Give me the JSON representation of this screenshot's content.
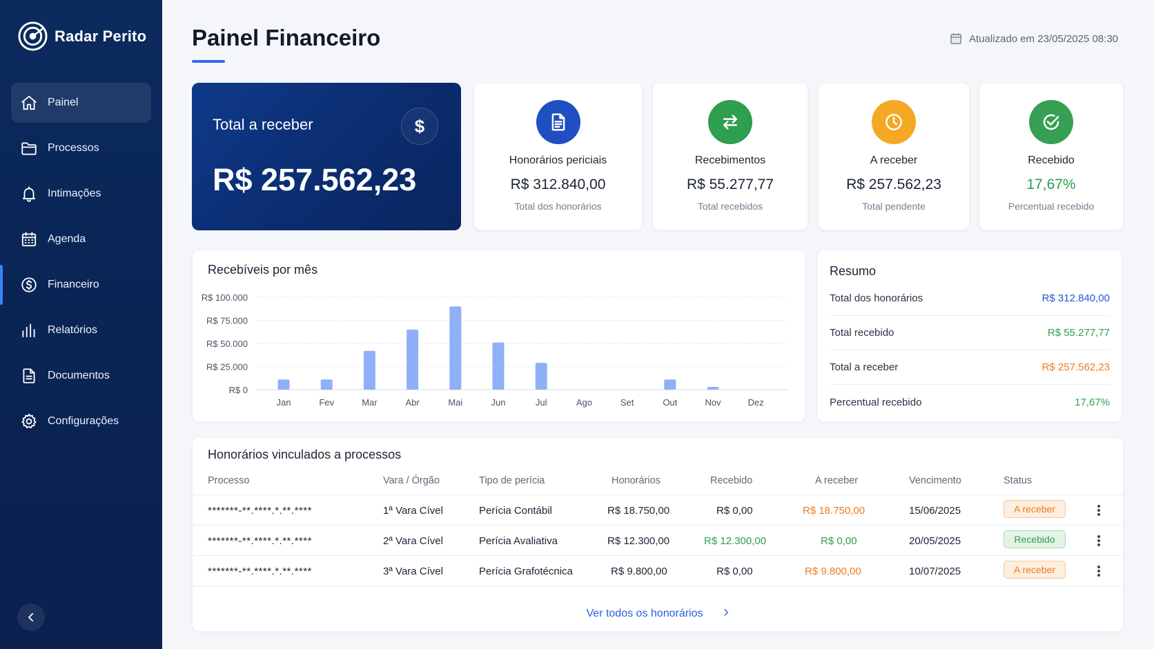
{
  "app": {
    "brand": "Radar Perito"
  },
  "sidebar": {
    "items": [
      {
        "label": "Painel",
        "icon": "home-icon"
      },
      {
        "label": "Processos",
        "icon": "folder-icon"
      },
      {
        "label": "Intimações",
        "icon": "bell-icon"
      },
      {
        "label": "Agenda",
        "icon": "calendar-icon"
      },
      {
        "label": "Financeiro",
        "icon": "dollar-circle-icon"
      },
      {
        "label": "Relatórios",
        "icon": "bar-chart-icon"
      },
      {
        "label": "Documentos",
        "icon": "document-icon"
      },
      {
        "label": "Configurações",
        "icon": "gear-icon"
      }
    ],
    "collapse_icon": "chevron-left-icon"
  },
  "header": {
    "title": "Painel Financeiro",
    "updated": "Atualizado em 23/05/2025 08:30"
  },
  "hero": {
    "label": "Total a receber",
    "value": "R$ 257.562,23",
    "icon_symbol": "$"
  },
  "stats": [
    {
      "title": "Honorários periciais",
      "value": "R$ 312.840,00",
      "sub": "Total dos honorários",
      "color": "#1f4fc0",
      "icon": "document-icon",
      "value_color": "#1b2333"
    },
    {
      "title": "Recebimentos",
      "value": "R$ 55.277,77",
      "sub": "Total recebidos",
      "color": "#2e9e4f",
      "icon": "transfer-arrows-icon",
      "value_color": "#1b2333"
    },
    {
      "title": "A receber",
      "value": "R$ 257.562,23",
      "sub": "Total pendente",
      "color": "#f4a823",
      "icon": "clock-icon",
      "value_color": "#1b2333"
    },
    {
      "title": "Recebido",
      "value": "17,67%",
      "sub": "Percentual recebido",
      "color": "#35a053",
      "icon": "check-circle-icon",
      "value_color": "#2e9e4f"
    }
  ],
  "chart": {
    "title": "Recebíveis por mês"
  },
  "chart_data": {
    "type": "bar",
    "categories": [
      "Jan",
      "Fev",
      "Mar",
      "Abr",
      "Mai",
      "Jun",
      "Jul",
      "Ago",
      "Set",
      "Out",
      "Nov",
      "Dez"
    ],
    "values": [
      11000,
      11000,
      42000,
      65000,
      90000,
      51000,
      29000,
      0,
      0,
      11000,
      3000,
      0
    ],
    "ylim": [
      0,
      100000
    ],
    "yticks": [
      "R$ 0",
      "R$ 25.000",
      "R$ 50.000",
      "R$ 75.000",
      "R$ 100.000"
    ],
    "ytick_values": [
      0,
      25000,
      50000,
      75000,
      100000
    ],
    "grid": true,
    "bar_color": "#8fb0f7"
  },
  "summary": {
    "title": "Resumo",
    "rows": [
      {
        "label": "Total dos honorários",
        "value": "R$ 312.840,00",
        "color": "#2058d0"
      },
      {
        "label": "Total recebido",
        "value": "R$ 55.277,77",
        "color": "#2e9e4f"
      },
      {
        "label": "Total a receber",
        "value": "R$ 257.562,23",
        "color": "#f07a1e"
      },
      {
        "label": "Percentual recebido",
        "value": "17,67%",
        "color": "#2e9e4f"
      }
    ]
  },
  "table": {
    "title": "Honorários vinculados a processos",
    "columns": [
      "Processo",
      "Vara / Órgão",
      "Tipo de perícia",
      "Honorários",
      "Recebido",
      "A receber",
      "Vencimento",
      "Status"
    ],
    "rows": [
      {
        "processo": "*******-**.****.*.**.****",
        "vara": "1ª Vara Cível",
        "tipo": "Perícia Contábil",
        "honorarios": "R$ 18.750,00",
        "recebido": "R$ 0,00",
        "recebido_color": "#2a3244",
        "a_receber": "R$ 18.750,00",
        "a_receber_color": "#f07a1e",
        "vencimento": "15/06/2025",
        "status": "A receber",
        "status_kind": "pending"
      },
      {
        "processo": "*******-**.****.*.**.****",
        "vara": "2ª Vara Cível",
        "tipo": "Perícia Avaliativa",
        "honorarios": "R$ 12.300,00",
        "recebido": "R$ 12.300,00",
        "recebido_color": "#2e9e4f",
        "a_receber": "R$ 0,00",
        "a_receber_color": "#2e9e4f",
        "vencimento": "20/05/2025",
        "status": "Recebido",
        "status_kind": "paid"
      },
      {
        "processo": "*******-**.****.*.**.****",
        "vara": "3ª Vara Cível",
        "tipo": "Perícia Grafotécnica",
        "honorarios": "R$ 9.800,00",
        "recebido": "R$ 0,00",
        "recebido_color": "#2a3244",
        "a_receber": "R$ 9.800,00",
        "a_receber_color": "#f07a1e",
        "vencimento": "10/07/2025",
        "status": "A receber",
        "status_kind": "pending"
      }
    ],
    "view_all": "Ver todos os honorários"
  }
}
